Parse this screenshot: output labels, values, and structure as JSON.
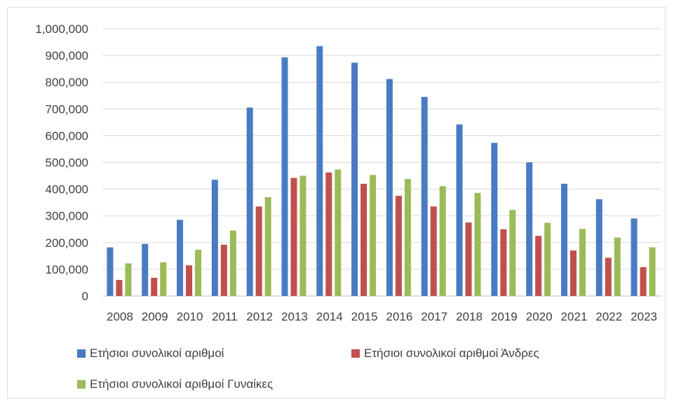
{
  "chart_data": {
    "type": "bar",
    "categories": [
      "2008",
      "2009",
      "2010",
      "2011",
      "2012",
      "2013",
      "2014",
      "2015",
      "2016",
      "2017",
      "2018",
      "2019",
      "2020",
      "2021",
      "2022",
      "2023"
    ],
    "series": [
      {
        "name": "Ετήσιοι συνολικοί  αριθμοί",
        "color": "#4a7bc2",
        "values": [
          182000,
          195000,
          285000,
          435000,
          705000,
          893000,
          935000,
          873000,
          812000,
          745000,
          642000,
          573000,
          500000,
          420000,
          362000,
          290000
        ]
      },
      {
        "name": "Ετήσιοι συνολικοί  αριθμοί Άνδρες",
        "color": "#c0504d",
        "values": [
          60000,
          68000,
          115000,
          192000,
          335000,
          442000,
          462000,
          420000,
          375000,
          335000,
          275000,
          250000,
          225000,
          170000,
          143000,
          108000
        ]
      },
      {
        "name": "Ετήσιοι συνολικοί  αριθμοί Γυναίκες",
        "color": "#9bbb59",
        "values": [
          122000,
          126000,
          173000,
          245000,
          370000,
          450000,
          473000,
          453000,
          438000,
          411000,
          386000,
          322000,
          274000,
          251000,
          219000,
          182000
        ]
      }
    ],
    "yticks": [
      "0",
      "100,000",
      "200,000",
      "300,000",
      "400,000",
      "500,000",
      "600,000",
      "700,000",
      "800,000",
      "900,000",
      "1,000,000"
    ],
    "ylim": [
      0,
      1000000
    ],
    "grid": true,
    "legend_position": "bottom"
  }
}
